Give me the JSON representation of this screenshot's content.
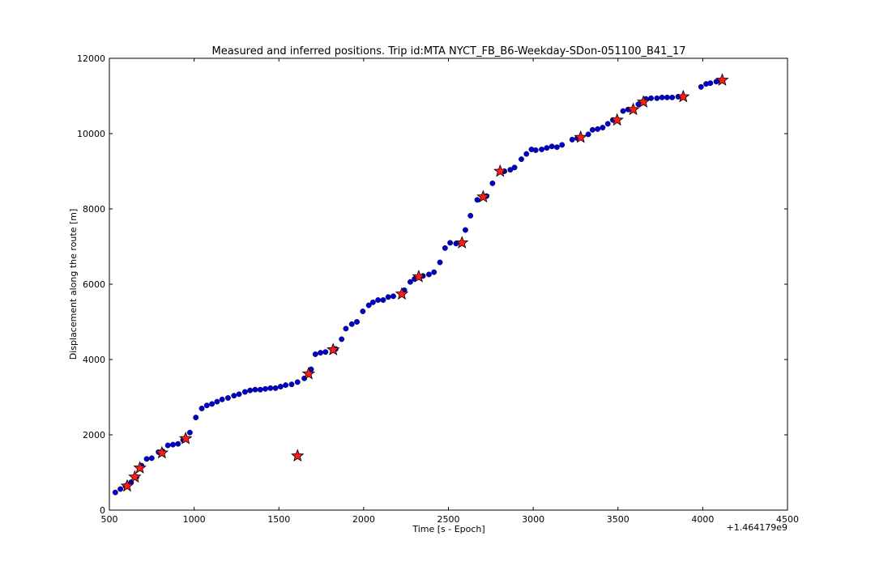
{
  "chart_data": {
    "type": "scatter",
    "title": "Measured and inferred positions. Trip id:MTA NYCT_FB_B6-Weekday-SDon-051100_B41_17",
    "xlabel": "Time [s - Epoch]",
    "ylabel": "Displacement along the route [m]",
    "x_offset_label": "+1.464179e9",
    "xlim": [
      500,
      4500
    ],
    "ylim": [
      0,
      12000
    ],
    "xticks": [
      500,
      1000,
      1500,
      2000,
      2500,
      3000,
      3500,
      4000,
      4500
    ],
    "yticks": [
      0,
      2000,
      4000,
      6000,
      8000,
      10000,
      12000
    ],
    "grid": false,
    "legend": "none",
    "series": [
      {
        "marker": "circle",
        "color": "#0000cc",
        "points": [
          [
            535,
            470
          ],
          [
            565,
            560
          ],
          [
            595,
            640
          ],
          [
            628,
            740
          ],
          [
            660,
            880
          ],
          [
            690,
            1180
          ],
          [
            720,
            1360
          ],
          [
            750,
            1380
          ],
          [
            790,
            1540
          ],
          [
            815,
            1560
          ],
          [
            845,
            1720
          ],
          [
            875,
            1740
          ],
          [
            905,
            1760
          ],
          [
            935,
            1860
          ],
          [
            975,
            2060
          ],
          [
            1010,
            2460
          ],
          [
            1045,
            2700
          ],
          [
            1075,
            2780
          ],
          [
            1105,
            2820
          ],
          [
            1135,
            2880
          ],
          [
            1165,
            2940
          ],
          [
            1200,
            2980
          ],
          [
            1235,
            3040
          ],
          [
            1265,
            3080
          ],
          [
            1300,
            3140
          ],
          [
            1330,
            3180
          ],
          [
            1360,
            3200
          ],
          [
            1390,
            3200
          ],
          [
            1420,
            3220
          ],
          [
            1450,
            3240
          ],
          [
            1480,
            3240
          ],
          [
            1510,
            3280
          ],
          [
            1540,
            3320
          ],
          [
            1575,
            3340
          ],
          [
            1610,
            3400
          ],
          [
            1650,
            3500
          ],
          [
            1690,
            3740
          ],
          [
            1715,
            4140
          ],
          [
            1745,
            4180
          ],
          [
            1775,
            4200
          ],
          [
            1835,
            4280
          ],
          [
            1870,
            4540
          ],
          [
            1895,
            4820
          ],
          [
            1930,
            4940
          ],
          [
            1960,
            5000
          ],
          [
            1995,
            5280
          ],
          [
            2030,
            5440
          ],
          [
            2055,
            5520
          ],
          [
            2085,
            5580
          ],
          [
            2115,
            5580
          ],
          [
            2145,
            5660
          ],
          [
            2175,
            5680
          ],
          [
            2240,
            5840
          ],
          [
            2275,
            6060
          ],
          [
            2300,
            6140
          ],
          [
            2350,
            6220
          ],
          [
            2385,
            6260
          ],
          [
            2415,
            6320
          ],
          [
            2450,
            6580
          ],
          [
            2480,
            6960
          ],
          [
            2510,
            7100
          ],
          [
            2545,
            7080
          ],
          [
            2600,
            7440
          ],
          [
            2630,
            7820
          ],
          [
            2670,
            8240
          ],
          [
            2725,
            8340
          ],
          [
            2760,
            8680
          ],
          [
            2830,
            9000
          ],
          [
            2865,
            9040
          ],
          [
            2890,
            9100
          ],
          [
            2930,
            9320
          ],
          [
            2960,
            9460
          ],
          [
            2990,
            9580
          ],
          [
            3015,
            9560
          ],
          [
            3050,
            9580
          ],
          [
            3080,
            9620
          ],
          [
            3110,
            9660
          ],
          [
            3140,
            9640
          ],
          [
            3170,
            9700
          ],
          [
            3230,
            9840
          ],
          [
            3260,
            9880
          ],
          [
            3325,
            9980
          ],
          [
            3350,
            10100
          ],
          [
            3380,
            10120
          ],
          [
            3410,
            10160
          ],
          [
            3440,
            10260
          ],
          [
            3470,
            10360
          ],
          [
            3530,
            10600
          ],
          [
            3560,
            10640
          ],
          [
            3620,
            10780
          ],
          [
            3665,
            10920
          ],
          [
            3695,
            10940
          ],
          [
            3730,
            10940
          ],
          [
            3760,
            10960
          ],
          [
            3790,
            10960
          ],
          [
            3820,
            10960
          ],
          [
            3855,
            10980
          ],
          [
            3990,
            11240
          ],
          [
            4020,
            11320
          ],
          [
            4045,
            11340
          ],
          [
            4080,
            11380
          ],
          [
            4105,
            11400
          ]
        ]
      },
      {
        "marker": "star",
        "color": "#ff1a1a",
        "points": [
          [
            605,
            640
          ],
          [
            650,
            880
          ],
          [
            680,
            1120
          ],
          [
            810,
            1520
          ],
          [
            950,
            1900
          ],
          [
            1610,
            1440
          ],
          [
            1675,
            3620
          ],
          [
            1820,
            4260
          ],
          [
            2225,
            5740
          ],
          [
            2325,
            6200
          ],
          [
            2580,
            7100
          ],
          [
            2705,
            8320
          ],
          [
            2805,
            9000
          ],
          [
            3280,
            9900
          ],
          [
            3495,
            10360
          ],
          [
            3590,
            10640
          ],
          [
            3650,
            10840
          ],
          [
            3885,
            10980
          ],
          [
            4115,
            11420
          ]
        ]
      }
    ]
  }
}
